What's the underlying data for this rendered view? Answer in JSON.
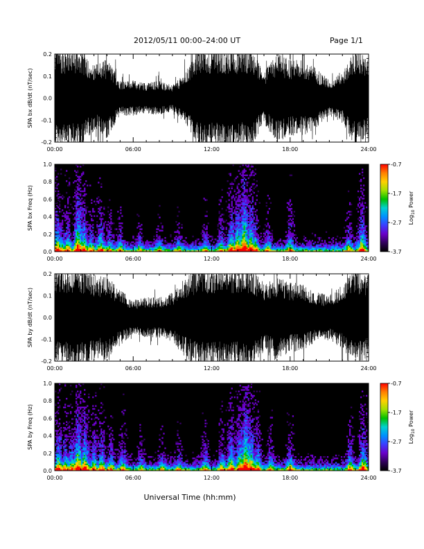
{
  "header": {
    "title": "2012/05/11   00:00–24:00 UT",
    "page": "Page 1/1"
  },
  "footer": {
    "xlabel": "Universal Time (hh:mm)"
  },
  "colorbar_label_html": "Log₁₀ Power",
  "colors": {
    "spectrogram_background": "#000000",
    "waveform": "#000000",
    "colormap": [
      "#000000",
      "#30005a",
      "#6a00c8",
      "#3c3cff",
      "#0090ff",
      "#00d0d0",
      "#00c000",
      "#a0e000",
      "#ffd000",
      "#ff8000",
      "#ff0000"
    ]
  },
  "chart_data": [
    {
      "type": "line",
      "panel": "waveform",
      "ylabel": "SPA bx dB/dt (nT/sec)",
      "xlim": [
        0,
        24
      ],
      "ylim": [
        -0.2,
        0.2
      ],
      "xticks": [
        "00:00",
        "06:00",
        "12:00",
        "18:00",
        "24:00"
      ],
      "yticks": [
        "-0.2",
        "-0.1",
        "0.0",
        "0.1",
        "0.2"
      ],
      "ytick_values": [
        -0.2,
        -0.1,
        0.0,
        0.1,
        0.2
      ],
      "series": [
        {
          "x": [
            0,
            1,
            2,
            3,
            4,
            5,
            6,
            7,
            8,
            9,
            10,
            11,
            12,
            13,
            14,
            15,
            16,
            17,
            18,
            19,
            20,
            21,
            22,
            23,
            24
          ],
          "amplitude": [
            0.2,
            0.2,
            0.2,
            0.13,
            0.16,
            0.07,
            0.07,
            0.06,
            0.07,
            0.05,
            0.1,
            0.2,
            0.2,
            0.2,
            0.2,
            0.2,
            0.1,
            0.18,
            0.15,
            0.15,
            0.12,
            0.07,
            0.1,
            0.2,
            0.15
          ]
        }
      ]
    },
    {
      "type": "heatmap",
      "panel": "spectrogram",
      "ylabel": "SPA bx Freq (Hz)",
      "xlim": [
        0,
        24
      ],
      "ylim": [
        0,
        1.0
      ],
      "xticks": [
        "00:00",
        "06:00",
        "12:00",
        "18:00",
        "24:00"
      ],
      "yticks": [
        "0.0",
        "0.2",
        "0.4",
        "0.6",
        "0.8",
        "1.0"
      ],
      "ytick_values": [
        0,
        0.2,
        0.4,
        0.6,
        0.8,
        1.0
      ],
      "colorbar": {
        "range": [
          -3.7,
          -0.7
        ],
        "ticks": [
          "-0.7",
          "-1.7",
          "-2.7",
          "-3.7"
        ],
        "tick_values": [
          -0.7,
          -1.7,
          -2.7,
          -3.7
        ]
      },
      "activity_time_hours": [
        0.2,
        0.5,
        1.0,
        1.8,
        2.2,
        2.8,
        3.5,
        4.2,
        5.0,
        6.5,
        8.0,
        9.5,
        11.5,
        12.7,
        13.5,
        14.0,
        14.5,
        15.0,
        15.3,
        16.3,
        18.0,
        22.5,
        23.5
      ],
      "activity_strength": [
        0.7,
        0.5,
        0.6,
        0.9,
        0.7,
        0.5,
        0.6,
        0.4,
        0.4,
        0.3,
        0.3,
        0.3,
        0.4,
        0.45,
        0.7,
        0.8,
        1.0,
        0.8,
        0.6,
        0.4,
        0.5,
        0.45,
        0.7
      ]
    },
    {
      "type": "line",
      "panel": "waveform",
      "ylabel": "SPA by dB/dt (nT/sec)",
      "xlim": [
        0,
        24
      ],
      "ylim": [
        -0.2,
        0.2
      ],
      "xticks": [
        "00:00",
        "06:00",
        "12:00",
        "18:00",
        "24:00"
      ],
      "yticks": [
        "-0.2",
        "-0.1",
        "0.0",
        "0.1",
        "0.2"
      ],
      "ytick_values": [
        -0.2,
        -0.1,
        0.0,
        0.1,
        0.2
      ],
      "series": [
        {
          "x": [
            0,
            1,
            2,
            3,
            4,
            5,
            6,
            7,
            8,
            9,
            10,
            11,
            12,
            13,
            14,
            15,
            16,
            17,
            18,
            19,
            20,
            21,
            22,
            23,
            24
          ],
          "amplitude": [
            0.2,
            0.2,
            0.2,
            0.17,
            0.17,
            0.11,
            0.07,
            0.08,
            0.08,
            0.1,
            0.16,
            0.2,
            0.2,
            0.2,
            0.2,
            0.2,
            0.14,
            0.17,
            0.14,
            0.13,
            0.1,
            0.09,
            0.13,
            0.2,
            0.17
          ]
        }
      ]
    },
    {
      "type": "heatmap",
      "panel": "spectrogram",
      "ylabel": "SPA by Freq (Hz)",
      "xlim": [
        0,
        24
      ],
      "ylim": [
        0,
        1.0
      ],
      "xticks": [
        "00:00",
        "06:00",
        "12:00",
        "18:00",
        "24:00"
      ],
      "yticks": [
        "0.0",
        "0.2",
        "0.4",
        "0.6",
        "0.8",
        "1.0"
      ],
      "ytick_values": [
        0,
        0.2,
        0.4,
        0.6,
        0.8,
        1.0
      ],
      "colorbar": {
        "range": [
          -3.7,
          -0.7
        ],
        "ticks": [
          "-0.7",
          "-1.7",
          "-2.7",
          "-3.7"
        ],
        "tick_values": [
          -0.7,
          -1.7,
          -2.7,
          -3.7
        ]
      },
      "activity_time_hours": [
        0.3,
        0.8,
        1.3,
        1.8,
        2.3,
        3.0,
        3.6,
        4.3,
        5.2,
        6.6,
        8.2,
        9.5,
        11.5,
        12.8,
        13.5,
        14.2,
        14.6,
        15.0,
        15.5,
        16.5,
        18.0,
        22.6,
        23.6
      ],
      "activity_strength": [
        0.7,
        0.6,
        0.6,
        0.9,
        0.8,
        0.6,
        0.6,
        0.5,
        0.5,
        0.35,
        0.35,
        0.35,
        0.45,
        0.5,
        0.7,
        0.8,
        1.0,
        0.8,
        0.6,
        0.45,
        0.5,
        0.5,
        0.7
      ]
    }
  ]
}
